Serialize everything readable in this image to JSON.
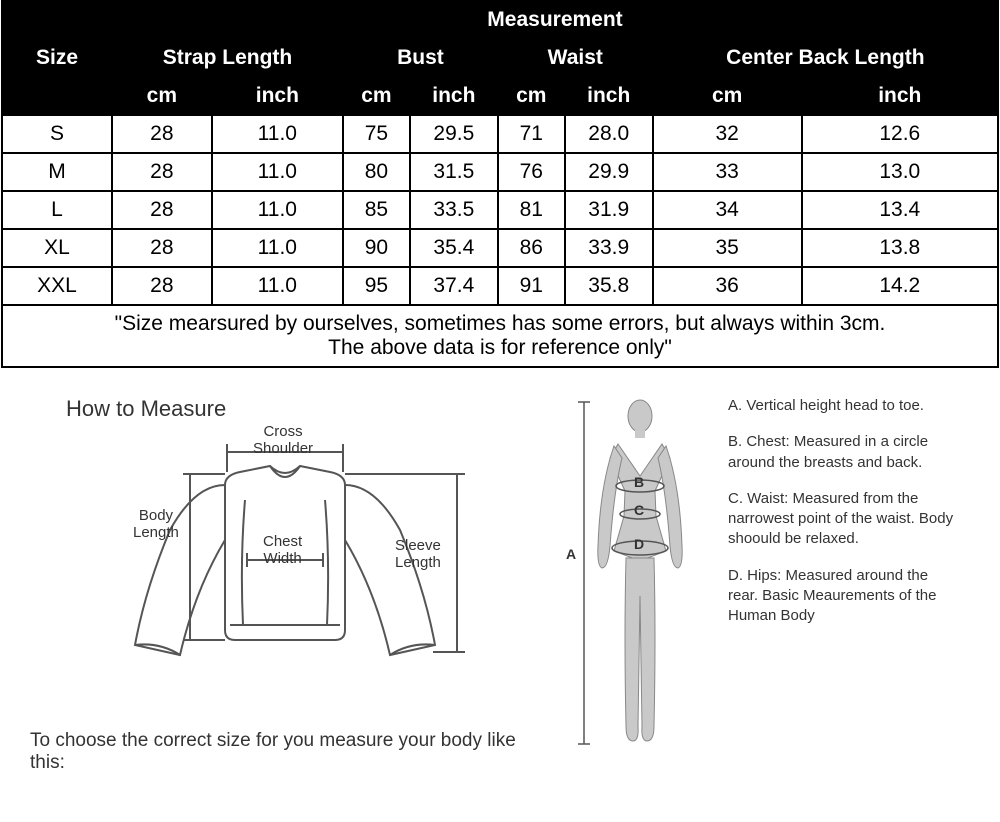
{
  "table": {
    "header_bg": "#000000",
    "header_color": "#ffffff",
    "border_color": "#000000",
    "cell_bg": "#ffffff",
    "cell_color": "#000000",
    "size_label": "Size",
    "measurement_label": "Measurement",
    "groups": [
      "Strap Length",
      "Bust",
      "Waist",
      "Center Back Length"
    ],
    "units": [
      "cm",
      "inch",
      "cm",
      "inch",
      "cm",
      "inch",
      "cm",
      "inch"
    ],
    "rows": [
      {
        "size": "S",
        "vals": [
          "28",
          "11.0",
          "75",
          "29.5",
          "71",
          "28.0",
          "32",
          "12.6"
        ]
      },
      {
        "size": "M",
        "vals": [
          "28",
          "11.0",
          "80",
          "31.5",
          "76",
          "29.9",
          "33",
          "13.0"
        ]
      },
      {
        "size": "L",
        "vals": [
          "28",
          "11.0",
          "85",
          "33.5",
          "81",
          "31.9",
          "34",
          "13.4"
        ]
      },
      {
        "size": "XL",
        "vals": [
          "28",
          "11.0",
          "90",
          "35.4",
          "86",
          "33.9",
          "35",
          "13.8"
        ]
      },
      {
        "size": "XXL",
        "vals": [
          "28",
          "11.0",
          "95",
          "37.4",
          "91",
          "35.8",
          "36",
          "14.2"
        ]
      }
    ],
    "note_line1": "\"Size mearsured by ourselves, sometimes has some errors, but always within 3cm.",
    "note_line2": "The above data is for reference only\""
  },
  "how": {
    "title": "How to Measure",
    "garment_labels": {
      "cross_shoulder": "Cross\nShoulder",
      "body_length": "Body\nLength",
      "chest_width": "Chest\nWidth",
      "sleeve_length": "Sleeve\nLength"
    },
    "choose_text": "To choose the correct size for you measure your body like this:",
    "figure_labels": {
      "A": "A",
      "B": "B",
      "C": "C",
      "D": "D"
    },
    "defs": {
      "A": "A. Vertical height head to toe.",
      "B": "B. Chest: Measured in a circle around the breasts and back.",
      "C": "C. Waist: Measured from the narrowest point of the waist. Body shoould be relaxed.",
      "D": "D. Hips: Measured around the rear. Basic Meaurements of the Human Body"
    }
  },
  "style": {
    "diagram_stroke": "#555555",
    "diagram_fill": "#cdcdcd",
    "figure_fill": "#c9c9c9",
    "text_color": "#333333"
  }
}
